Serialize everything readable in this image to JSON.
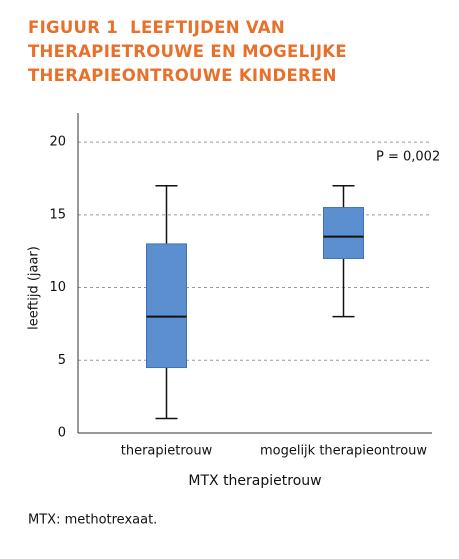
{
  "chart_data": {
    "type": "box",
    "title": "FIGUUR 1  LEEFTIJDEN VAN THERAPIETROUWE EN MOGELIJKE THERAPIEONTROUWE KINDEREN",
    "y_label": "leeftijd (jaar)",
    "x_label": "MTX therapietrouw",
    "annotation": "P = 0,002",
    "footnote": "MTX: methotrexaat.",
    "categories": [
      "therapietrouw",
      "mogelijk therapieontrouw"
    ],
    "boxes": [
      {
        "min": 1,
        "q1": 4.5,
        "median": 8,
        "q3": 13,
        "max": 17
      },
      {
        "min": 8,
        "q1": 12,
        "median": 13.5,
        "q3": 15.5,
        "max": 17
      }
    ],
    "color": "#5b8fd0",
    "ylim": [
      0,
      22
    ],
    "yticks": [
      0,
      5,
      10,
      15,
      20
    ],
    "grid": true
  }
}
